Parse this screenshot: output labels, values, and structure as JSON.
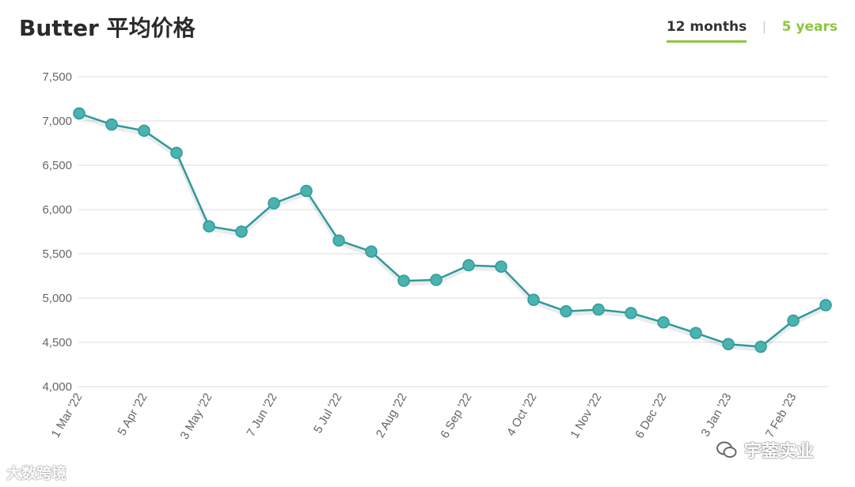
{
  "header": {
    "title": "Butter 平均价格",
    "tabs": [
      {
        "label": "12 months",
        "active": true
      },
      {
        "label": "5 years",
        "active": false
      }
    ]
  },
  "watermarks": {
    "left": "大数跨境",
    "right": "宇蓥实业"
  },
  "colors": {
    "line": "#2f9a9a",
    "marker_fill": "#4ab3b0",
    "accent": "#8cc63e",
    "grid": "#e2e2e2"
  },
  "chart_data": {
    "type": "line",
    "title": "Butter 平均价格",
    "xlabel": "",
    "ylabel": "",
    "ylim": [
      4000,
      7500
    ],
    "yticks": [
      4000,
      4500,
      5000,
      5500,
      6000,
      6500,
      7000,
      7500
    ],
    "ytick_labels": [
      "4,000",
      "4,500",
      "5,000",
      "5,500",
      "6,000",
      "6,500",
      "7,000",
      "7,500"
    ],
    "grid": true,
    "x_tick_labels": [
      {
        "index": 0,
        "label": "1 Mar '22"
      },
      {
        "index": 2,
        "label": "5 Apr '22"
      },
      {
        "index": 4,
        "label": "3 May '22"
      },
      {
        "index": 6,
        "label": "7 Jun '22"
      },
      {
        "index": 8,
        "label": "5 Jul '22"
      },
      {
        "index": 10,
        "label": "2 Aug '22"
      },
      {
        "index": 12,
        "label": "6 Sep '22"
      },
      {
        "index": 14,
        "label": "4 Oct '22"
      },
      {
        "index": 16,
        "label": "1 Nov '22"
      },
      {
        "index": 18,
        "label": "6 Dec '22"
      },
      {
        "index": 20,
        "label": "3 Jan '23"
      },
      {
        "index": 22,
        "label": "7 Feb '23"
      }
    ],
    "series": [
      {
        "values": [
          7085,
          6960,
          6890,
          6640,
          5810,
          5750,
          6070,
          6210,
          5650,
          5525,
          5195,
          5205,
          5370,
          5355,
          4980,
          4850,
          4870,
          4830,
          4725,
          4605,
          4480,
          4450,
          4745,
          4920
        ]
      }
    ]
  }
}
